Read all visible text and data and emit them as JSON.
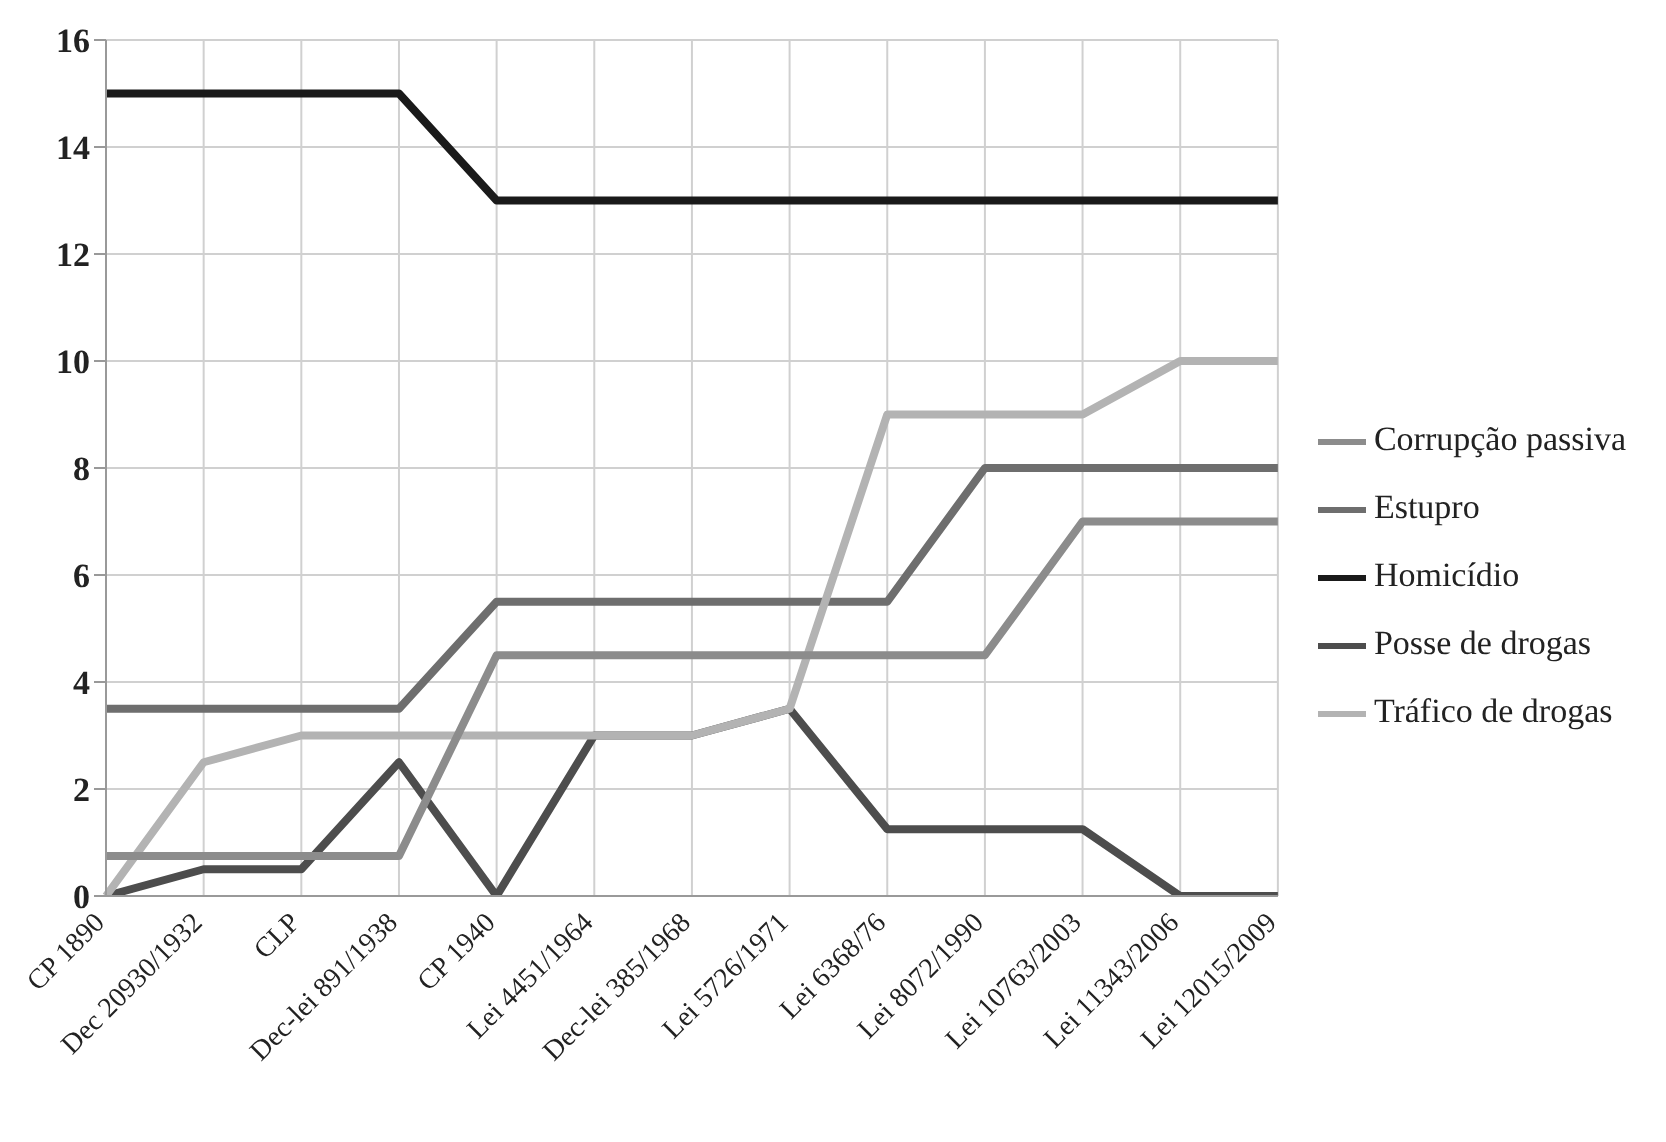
{
  "chart_data": {
    "type": "line",
    "categories": [
      "CP 1890",
      "Dec 20930/1932",
      "CLP",
      "Dec-lei 891/1938",
      "CP 1940",
      "Lei 4451/1964",
      "Dec-lei 385/1968",
      "Lei 5726/1971",
      "Lei 6368/76",
      "Lei 8072/1990",
      "Lei 10763/2003",
      "Lei 11343/2006",
      "Lei 12015/2009"
    ],
    "series": [
      {
        "name": "Posse de drogas",
        "color": "#4d4d4d",
        "values": [
          0,
          0.5,
          0.5,
          2.5,
          0,
          3,
          3,
          3.5,
          1.25,
          1.25,
          1.25,
          0,
          0
        ]
      },
      {
        "name": "Estupro",
        "color": "#6e6e6e",
        "values": [
          3.5,
          3.5,
          3.5,
          3.5,
          5.5,
          5.5,
          5.5,
          5.5,
          5.5,
          8,
          8,
          8,
          8
        ]
      },
      {
        "name": "Tráfico de drogas",
        "color": "#b3b3b3",
        "values": [
          0,
          2.5,
          3,
          3,
          3,
          3,
          3,
          3.5,
          9,
          9,
          9,
          10,
          10
        ]
      },
      {
        "name": "Homicídio",
        "color": "#1a1a1a",
        "values": [
          15,
          15,
          15,
          15,
          13,
          13,
          13,
          13,
          13,
          13,
          13,
          13,
          13
        ]
      },
      {
        "name": "Corrupção passiva",
        "color": "#8c8c8c",
        "values": [
          0.75,
          0.75,
          0.75,
          0.75,
          4.5,
          4.5,
          4.5,
          4.5,
          4.5,
          4.5,
          7,
          7,
          7
        ]
      }
    ],
    "ylim": [
      0,
      16
    ],
    "yticks": [
      0,
      2,
      4,
      6,
      8,
      10,
      12,
      14,
      16
    ],
    "grid": true,
    "legend": "right",
    "marker": "none",
    "line_style": "solid"
  }
}
